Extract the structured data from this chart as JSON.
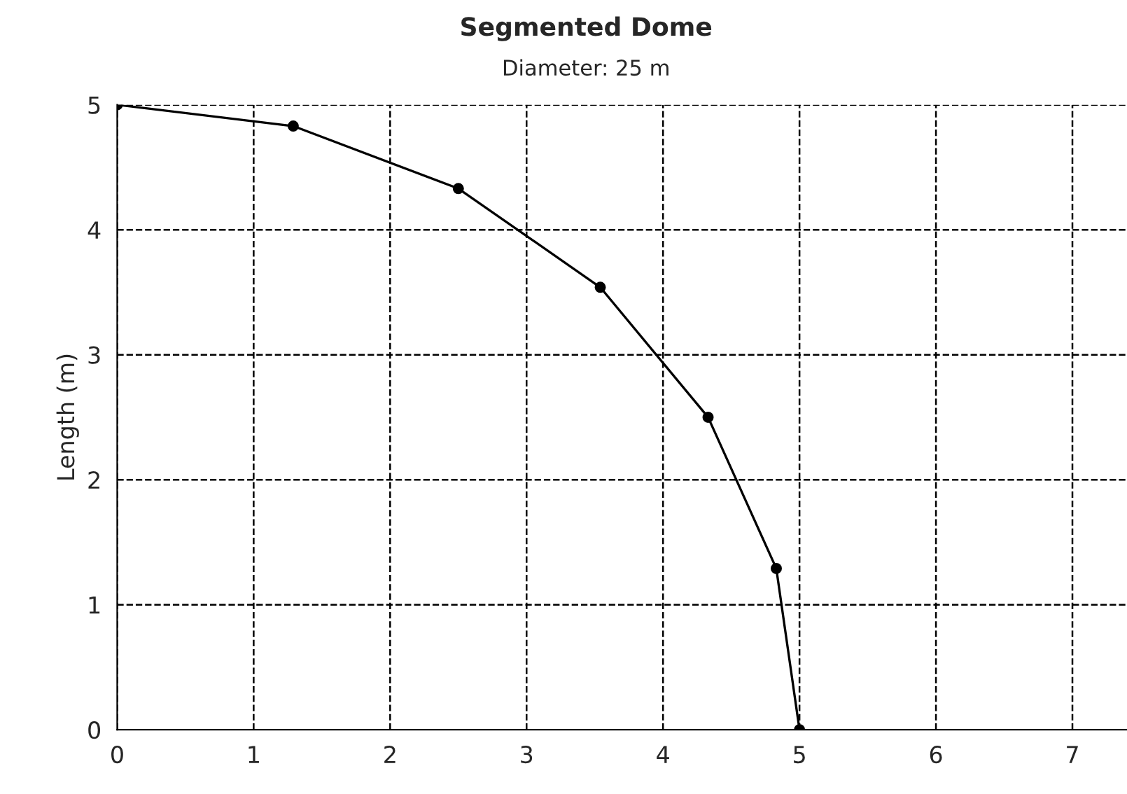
{
  "chart_data": {
    "type": "line",
    "title": "Segmented Dome",
    "subtitle": "Diameter: 25 m",
    "ylabel": "Length (m)",
    "series": [
      {
        "color": "#000000",
        "x": [
          0,
          1.29,
          2.5,
          3.54,
          4.33,
          4.83,
          5
        ],
        "values": [
          5,
          4.83,
          4.33,
          3.54,
          2.5,
          1.29,
          0
        ]
      }
    ],
    "xlim": [
      0,
      7.4
    ],
    "xticks": [
      0,
      1,
      2,
      3,
      4,
      5,
      6,
      7
    ],
    "ylim": [
      0,
      5
    ],
    "yticks": [
      0,
      1,
      2,
      3,
      4,
      5
    ],
    "grid": true,
    "marker": "circle",
    "line_style": "solid",
    "legend": false
  }
}
